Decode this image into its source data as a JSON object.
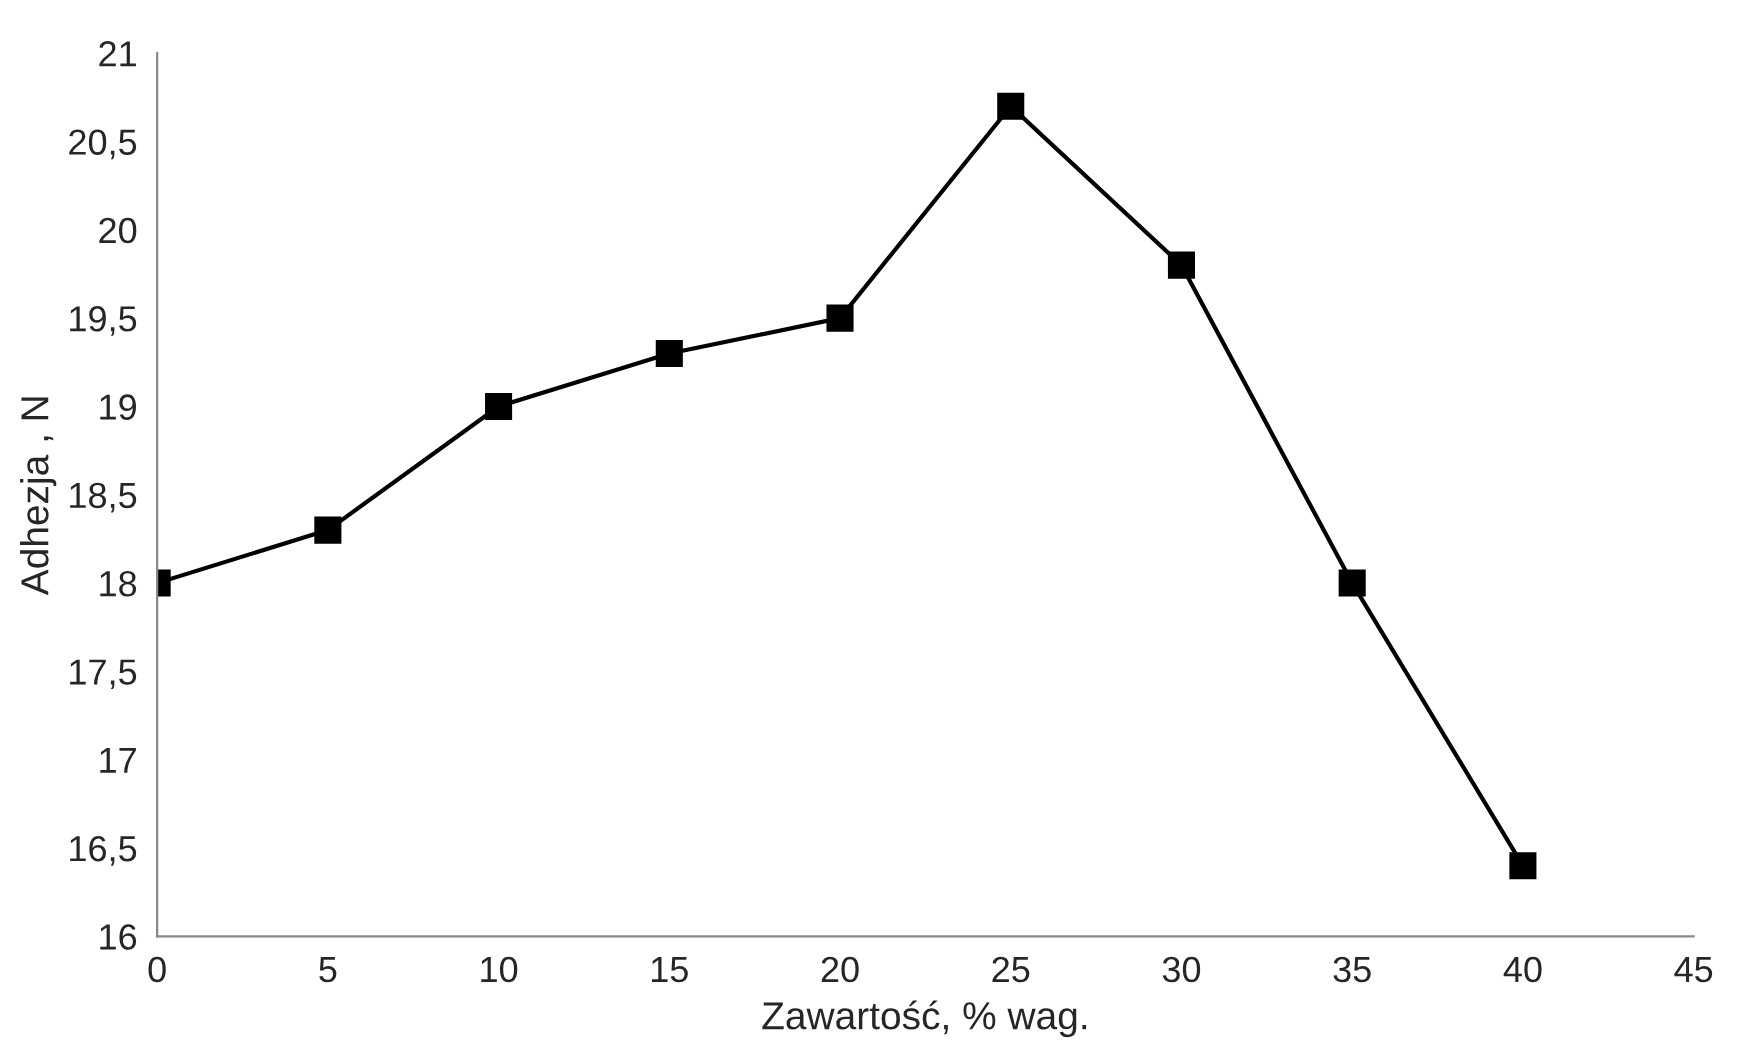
{
  "chart_data": {
    "type": "line",
    "xlabel": "Zawartość, % wag.",
    "ylabel": "Adhezja , N",
    "x": [
      0,
      5,
      10,
      15,
      20,
      25,
      30,
      35,
      40
    ],
    "series": [
      {
        "color": "#000000",
        "values": [
          18,
          18.3,
          19,
          19.3,
          19.5,
          20.7,
          19.8,
          18,
          16.4
        ]
      }
    ],
    "xlim": [
      0,
      45
    ],
    "xticks": [
      0,
      5,
      10,
      15,
      20,
      25,
      30,
      35,
      40,
      45
    ],
    "ylim": [
      16,
      21
    ],
    "yticks": [
      16,
      {
        "value": 16.5,
        "label": "16,5"
      },
      17,
      {
        "value": 17.5,
        "label": "17,5"
      },
      18,
      {
        "value": 18.5,
        "label": "18,5"
      },
      19,
      {
        "value": 19.5,
        "label": "19,5"
      },
      20,
      {
        "value": 20.5,
        "label": "20,5"
      },
      21
    ],
    "marker": "square",
    "line_style": "solid",
    "grid": false
  }
}
